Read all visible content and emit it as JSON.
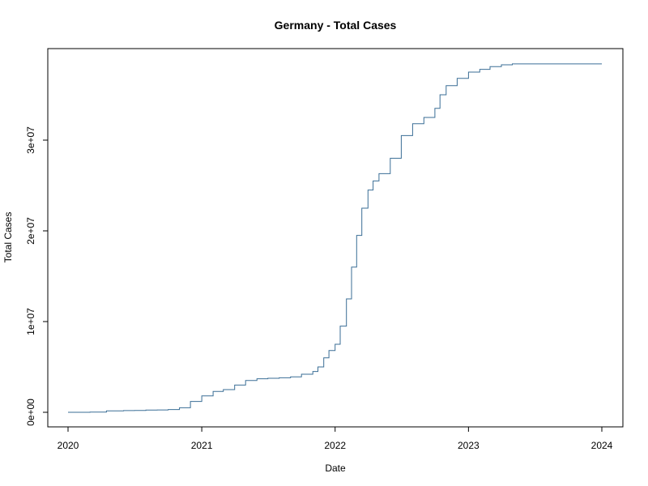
{
  "chart_data": {
    "type": "line",
    "title": "Germany - Total Cases",
    "xlabel": "Date",
    "ylabel": "Total Cases",
    "x_ticks": [
      "2020",
      "2021",
      "2022",
      "2023",
      "2024"
    ],
    "y_ticks": [
      "0e+00",
      "1e+07",
      "2e+07",
      "3e+07"
    ],
    "xlim": [
      "2020-01-01",
      "2024-01-01"
    ],
    "ylim": [
      -1000000,
      40000000
    ],
    "grid": false,
    "line_color": "#3a6e96",
    "series": [
      {
        "x": [
          "2020-01-01",
          "2020-03-01",
          "2020-04-15",
          "2020-06-01",
          "2020-07-01",
          "2020-08-01",
          "2020-09-01",
          "2020-10-01",
          "2020-11-01",
          "2020-12-01",
          "2021-01-01",
          "2021-02-01",
          "2021-03-01",
          "2021-04-01",
          "2021-05-01",
          "2021-06-01",
          "2021-07-01",
          "2021-08-01",
          "2021-09-01",
          "2021-10-01",
          "2021-11-01",
          "2021-11-15",
          "2021-12-01",
          "2021-12-15",
          "2022-01-01",
          "2022-01-15",
          "2022-02-01",
          "2022-02-15",
          "2022-03-01",
          "2022-03-15",
          "2022-04-01",
          "2022-04-15",
          "2022-05-01",
          "2022-06-01",
          "2022-07-01",
          "2022-08-01",
          "2022-09-01",
          "2022-10-01",
          "2022-10-15",
          "2022-11-01",
          "2022-12-01",
          "2023-01-01",
          "2023-02-01",
          "2023-03-01",
          "2023-04-01",
          "2023-05-01",
          "2024-01-01"
        ],
        "y": [
          0,
          20000,
          150000,
          190000,
          200000,
          240000,
          260000,
          300000,
          500000,
          1200000,
          1800000,
          2300000,
          2500000,
          3000000,
          3500000,
          3700000,
          3750000,
          3800000,
          3900000,
          4200000,
          4500000,
          5000000,
          6000000,
          6800000,
          7500000,
          9500000,
          12500000,
          16000000,
          19500000,
          22500000,
          24500000,
          25500000,
          26300000,
          28000000,
          30500000,
          31800000,
          32500000,
          33500000,
          35000000,
          36000000,
          36800000,
          37500000,
          37800000,
          38100000,
          38300000,
          38400000,
          38400000
        ]
      }
    ]
  }
}
